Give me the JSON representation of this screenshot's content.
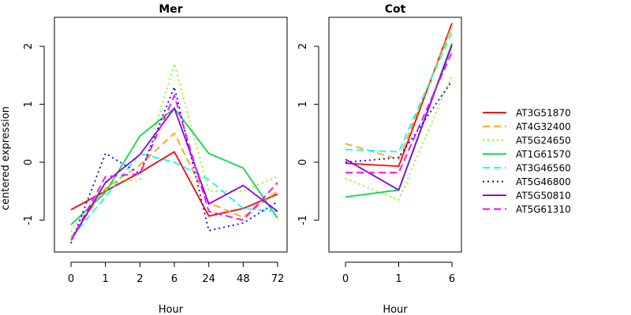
{
  "chart_data": [
    {
      "type": "line",
      "title": "Mer",
      "xlabel": "Hour",
      "ylabel": "centered expression",
      "categories": [
        "0",
        "1",
        "2",
        "6",
        "24",
        "48",
        "72"
      ],
      "ylim": [
        -1.55,
        2.5
      ],
      "yticks": [
        -1,
        0,
        1,
        2
      ],
      "series": [
        {
          "name": "AT3G51870",
          "color": "#ff0000",
          "dash": "solid",
          "values": [
            -0.82,
            -0.5,
            -0.18,
            0.18,
            -0.93,
            -0.8,
            -0.55
          ]
        },
        {
          "name": "AT4G32400",
          "color": "#ffa500",
          "dash": "long",
          "values": [
            -1.3,
            -0.45,
            -0.05,
            0.5,
            -0.7,
            -0.95,
            -0.5
          ]
        },
        {
          "name": "AT5G24650",
          "color": "#7fff00",
          "dash": "dot",
          "values": [
            -1.2,
            -0.35,
            -0.3,
            1.7,
            -0.5,
            -0.5,
            -0.25
          ]
        },
        {
          "name": "AT1G61570",
          "color": "#00dd44",
          "dash": "solid",
          "values": [
            -1.08,
            -0.52,
            0.45,
            0.93,
            0.15,
            -0.1,
            -0.97
          ]
        },
        {
          "name": "AT3G46560",
          "color": "#00ffff",
          "dash": "long",
          "values": [
            -1.3,
            -0.6,
            0.15,
            0.0,
            -0.3,
            -0.8,
            -0.85
          ]
        },
        {
          "name": "AT5G46800",
          "color": "#0000ff",
          "dash": "dot",
          "values": [
            -1.4,
            0.15,
            -0.2,
            1.3,
            -1.18,
            -1.05,
            -0.68
          ]
        },
        {
          "name": "AT5G50810",
          "color": "#8a00e6",
          "dash": "solid",
          "values": [
            -1.35,
            -0.35,
            0.13,
            0.93,
            -0.72,
            -0.4,
            -0.85
          ]
        },
        {
          "name": "AT5G61310",
          "color": "#ff00ff",
          "dash": "long",
          "values": [
            -1.35,
            -0.25,
            -0.2,
            1.15,
            -0.85,
            -1.0,
            -0.35
          ]
        }
      ]
    },
    {
      "type": "line",
      "title": "Cot",
      "xlabel": "Hour",
      "ylabel": "",
      "categories": [
        "0",
        "1",
        "6"
      ],
      "ylim": [
        -1.55,
        2.5
      ],
      "yticks": [
        -1,
        0,
        1,
        2
      ],
      "series": [
        {
          "name": "AT3G51870",
          "color": "#ff0000",
          "dash": "solid",
          "values": [
            -0.02,
            -0.07,
            2.4
          ]
        },
        {
          "name": "AT4G32400",
          "color": "#ffa500",
          "dash": "long",
          "values": [
            0.32,
            0.05,
            2.35
          ]
        },
        {
          "name": "AT5G24650",
          "color": "#7fff00",
          "dash": "dot",
          "values": [
            -0.28,
            -0.65,
            1.5
          ]
        },
        {
          "name": "AT1G61570",
          "color": "#00dd44",
          "dash": "solid",
          "values": [
            -0.6,
            -0.48,
            2.05
          ]
        },
        {
          "name": "AT3G46560",
          "color": "#00ffff",
          "dash": "long",
          "values": [
            0.22,
            0.18,
            2.25
          ]
        },
        {
          "name": "AT5G46800",
          "color": "#0000ff",
          "dash": "dot",
          "values": [
            0.0,
            0.08,
            1.4
          ]
        },
        {
          "name": "AT5G50810",
          "color": "#8a00e6",
          "dash": "solid",
          "values": [
            0.05,
            -0.48,
            2.02
          ]
        },
        {
          "name": "AT5G61310",
          "color": "#ff00ff",
          "dash": "long",
          "values": [
            -0.18,
            -0.18,
            1.9
          ]
        }
      ]
    }
  ],
  "legend": {
    "placement": "right",
    "entries": [
      {
        "name": "AT3G51870",
        "color": "#ff0000",
        "dash": "solid"
      },
      {
        "name": "AT4G32400",
        "color": "#ffa500",
        "dash": "long"
      },
      {
        "name": "AT5G24650",
        "color": "#7fff00",
        "dash": "dot"
      },
      {
        "name": "AT1G61570",
        "color": "#00dd44",
        "dash": "solid"
      },
      {
        "name": "AT3G46560",
        "color": "#00ffff",
        "dash": "long"
      },
      {
        "name": "AT5G46800",
        "color": "#0000ff",
        "dash": "dot"
      },
      {
        "name": "AT5G50810",
        "color": "#8a00e6",
        "dash": "solid"
      },
      {
        "name": "AT5G61310",
        "color": "#ff00ff",
        "dash": "long"
      }
    ]
  }
}
